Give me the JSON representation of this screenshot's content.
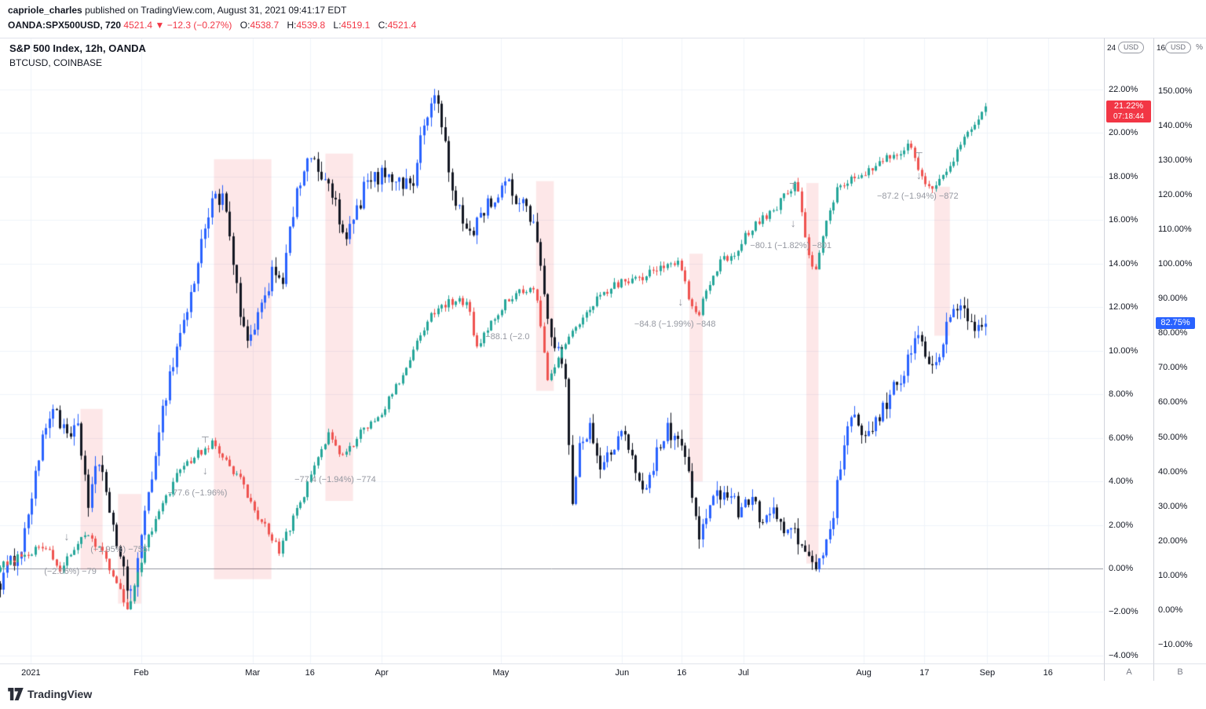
{
  "page": {
    "attribution": {
      "user": "capriole_charles",
      "rest": " published on TradingView.com, August 31, 2021 09:41:17 EDT"
    },
    "symbol_line": {
      "symbol": "OANDA:SPX500USD, 720",
      "last": "4521.4",
      "direction": "▼",
      "change": "−12.3 (−0.27%)",
      "open_label": "O:",
      "open_value": "4538.7",
      "high_label": "H:",
      "high_value": "4539.8",
      "low_label": "L:",
      "low_value": "4519.1",
      "close_label": "C:",
      "close_value": "4521.4"
    },
    "legend": {
      "line1": "S&P 500 Index, 12h, OANDA",
      "line2": "BTCUSD, COINBASE"
    },
    "scales": {
      "usd_button": "USD",
      "percent_label": "%",
      "inner_top_partial": "24",
      "outer_top_partial": "16",
      "a_button": "A",
      "b_button": "B",
      "spx_badge_value": "21.22%",
      "spx_badge_countdown": "07:18:44",
      "btc_badge_value": "82.75%"
    },
    "footer": {
      "brand": "TradingView"
    }
  },
  "chart_data": {
    "type": "candlestick",
    "description": "Percentage-change overlay of S&P 500 (12h, OANDA) and BTCUSD (COINBASE), Dec 2020 - Aug 2021",
    "bar_count": 280,
    "t_end": 0.893,
    "x_axis": {
      "labels": [
        {
          "label": "2021",
          "t": 0.028
        },
        {
          "label": "Feb",
          "t": 0.128
        },
        {
          "label": "Mar",
          "t": 0.229
        },
        {
          "label": "16",
          "t": 0.281
        },
        {
          "label": "Apr",
          "t": 0.346
        },
        {
          "label": "May",
          "t": 0.454
        },
        {
          "label": "Jun",
          "t": 0.564
        },
        {
          "label": "16",
          "t": 0.618
        },
        {
          "label": "Jul",
          "t": 0.674
        },
        {
          "label": "Aug",
          "t": 0.783
        },
        {
          "label": "17",
          "t": 0.838
        },
        {
          "label": "Sep",
          "t": 0.895
        },
        {
          "label": "16",
          "t": 0.95
        }
      ]
    },
    "inner_axis": {
      "unit": "%",
      "min": -4.4,
      "max": 24.34,
      "ticks": [
        22,
        20,
        18,
        16,
        14,
        12,
        10,
        8,
        6,
        4,
        2,
        0,
        -2,
        -4
      ]
    },
    "outer_axis": {
      "unit": "%",
      "min": -15.7,
      "max": 165.2,
      "ticks": [
        150,
        140,
        130,
        120,
        110,
        100,
        90,
        80,
        70,
        60,
        50,
        40,
        30,
        20,
        10,
        0,
        -10
      ]
    },
    "series": [
      {
        "name": "BTCUSD, COINBASE",
        "scale": "outer",
        "up_color": "#2962ff",
        "down_color": "#131722",
        "noise": 5,
        "wick": 3,
        "last_value": 82.75,
        "anchors": [
          [
            0,
            8
          ],
          [
            0.021,
            19.5
          ],
          [
            0.032,
            40
          ],
          [
            0.046,
            58
          ],
          [
            0.05,
            59
          ],
          [
            0.06,
            49
          ],
          [
            0.071,
            52
          ],
          [
            0.08,
            31
          ],
          [
            0.087,
            42
          ],
          [
            0.096,
            35
          ],
          [
            0.107,
            17
          ],
          [
            0.116,
            4.8
          ],
          [
            0.121,
            8
          ],
          [
            0.128,
            19.5
          ],
          [
            0.142,
            49
          ],
          [
            0.153,
            67
          ],
          [
            0.164,
            81
          ],
          [
            0.174,
            92
          ],
          [
            0.184,
            108
          ],
          [
            0.192,
            120
          ],
          [
            0.203,
            118
          ],
          [
            0.21,
            103
          ],
          [
            0.219,
            81
          ],
          [
            0.228,
            78
          ],
          [
            0.237,
            87
          ],
          [
            0.247,
            99
          ],
          [
            0.256,
            96
          ],
          [
            0.267,
            117
          ],
          [
            0.278,
            132
          ],
          [
            0.285,
            128
          ],
          [
            0.293,
            124
          ],
          [
            0.302,
            120
          ],
          [
            0.311,
            106
          ],
          [
            0.32,
            112
          ],
          [
            0.331,
            123
          ],
          [
            0.342,
            125
          ],
          [
            0.352,
            127
          ],
          [
            0.363,
            123
          ],
          [
            0.374,
            124
          ],
          [
            0.384,
            140
          ],
          [
            0.394,
            149
          ],
          [
            0.399,
            144
          ],
          [
            0.404,
            132
          ],
          [
            0.411,
            118
          ],
          [
            0.42,
            112
          ],
          [
            0.427,
            109
          ],
          [
            0.438,
            116
          ],
          [
            0.448,
            119
          ],
          [
            0.459,
            123
          ],
          [
            0.468,
            119
          ],
          [
            0.478,
            117
          ],
          [
            0.488,
            106
          ],
          [
            0.495,
            85
          ],
          [
            0.502,
            74
          ],
          [
            0.507,
            78
          ],
          [
            0.512,
            65
          ],
          [
            0.518,
            31
          ],
          [
            0.525,
            49
          ],
          [
            0.534,
            53
          ],
          [
            0.544,
            40
          ],
          [
            0.555,
            47
          ],
          [
            0.564,
            51
          ],
          [
            0.573,
            43
          ],
          [
            0.584,
            35
          ],
          [
            0.594,
            44
          ],
          [
            0.605,
            52
          ],
          [
            0.613,
            50
          ],
          [
            0.623,
            42
          ],
          [
            0.633,
            22
          ],
          [
            0.641,
            26
          ],
          [
            0.65,
            34
          ],
          [
            0.66,
            35
          ],
          [
            0.669,
            29
          ],
          [
            0.678,
            33
          ],
          [
            0.689,
            27
          ],
          [
            0.699,
            29
          ],
          [
            0.708,
            24
          ],
          [
            0.717,
            22
          ],
          [
            0.726,
            19.5
          ],
          [
            0.735,
            14
          ],
          [
            0.742,
            13
          ],
          [
            0.749,
            18
          ],
          [
            0.754,
            26
          ],
          [
            0.762,
            42
          ],
          [
            0.769,
            52
          ],
          [
            0.777,
            56
          ],
          [
            0.783,
            49
          ],
          [
            0.791,
            52
          ],
          [
            0.801,
            58
          ],
          [
            0.809,
            64
          ],
          [
            0.819,
            69
          ],
          [
            0.827,
            76
          ],
          [
            0.834,
            81
          ],
          [
            0.84,
            72
          ],
          [
            0.847,
            68
          ],
          [
            0.854,
            78
          ],
          [
            0.863,
            85
          ],
          [
            0.87,
            89
          ],
          [
            0.877,
            84
          ],
          [
            0.884,
            81
          ],
          [
            0.89,
            84
          ],
          [
            0.893,
            82.75
          ]
        ]
      },
      {
        "name": "S&P 500 Index, 12h, OANDA",
        "scale": "inner",
        "up_color": "#26a69a",
        "down_color": "#ef5350",
        "noise": 0.4,
        "wick": 0.2,
        "last_value": 21.22,
        "anchors": [
          [
            0,
            0.2
          ],
          [
            0.02,
            0.6
          ],
          [
            0.04,
            1
          ],
          [
            0.055,
            0
          ],
          [
            0.07,
            1.2
          ],
          [
            0.082,
            1.5
          ],
          [
            0.095,
            0.5
          ],
          [
            0.108,
            -0.8
          ],
          [
            0.116,
            -2
          ],
          [
            0.124,
            -0.5
          ],
          [
            0.135,
            1.5
          ],
          [
            0.15,
            3.2
          ],
          [
            0.163,
            4.5
          ],
          [
            0.178,
            5.2
          ],
          [
            0.192,
            5.8
          ],
          [
            0.205,
            5
          ],
          [
            0.218,
            4
          ],
          [
            0.232,
            2.5
          ],
          [
            0.245,
            1.5
          ],
          [
            0.253,
            0.8
          ],
          [
            0.262,
            1.8
          ],
          [
            0.272,
            3
          ],
          [
            0.285,
            4.8
          ],
          [
            0.298,
            6.2
          ],
          [
            0.309,
            5
          ],
          [
            0.32,
            5.8
          ],
          [
            0.333,
            6.6
          ],
          [
            0.346,
            7.2
          ],
          [
            0.36,
            8.5
          ],
          [
            0.375,
            10
          ],
          [
            0.391,
            11.7
          ],
          [
            0.413,
            12.4
          ],
          [
            0.424,
            12.2
          ],
          [
            0.431,
            9.9
          ],
          [
            0.441,
            10.9
          ],
          [
            0.454,
            12
          ],
          [
            0.47,
            12.7
          ],
          [
            0.484,
            12.9
          ],
          [
            0.492,
            10.5
          ],
          [
            0.495,
            8.4
          ],
          [
            0.502,
            9.1
          ],
          [
            0.509,
            10.2
          ],
          [
            0.52,
            10.9
          ],
          [
            0.534,
            12
          ],
          [
            0.548,
            12.7
          ],
          [
            0.562,
            13.1
          ],
          [
            0.584,
            13.4
          ],
          [
            0.605,
            14
          ],
          [
            0.616,
            14.2
          ],
          [
            0.626,
            12
          ],
          [
            0.633,
            11.7
          ],
          [
            0.644,
            13.1
          ],
          [
            0.655,
            14.2
          ],
          [
            0.669,
            14.5
          ],
          [
            0.676,
            15.3
          ],
          [
            0.69,
            16
          ],
          [
            0.705,
            16.7
          ],
          [
            0.715,
            17.4
          ],
          [
            0.722,
            17.6
          ],
          [
            0.733,
            14.2
          ],
          [
            0.74,
            13.8
          ],
          [
            0.747,
            15.6
          ],
          [
            0.758,
            17.3
          ],
          [
            0.769,
            17.8
          ],
          [
            0.783,
            18.2
          ],
          [
            0.797,
            18.7
          ],
          [
            0.811,
            19.1
          ],
          [
            0.826,
            19.4
          ],
          [
            0.836,
            17.8
          ],
          [
            0.843,
            17.3
          ],
          [
            0.85,
            17.6
          ],
          [
            0.861,
            18.5
          ],
          [
            0.872,
            19.6
          ],
          [
            0.883,
            20.5
          ],
          [
            0.893,
            21.22
          ]
        ]
      }
    ],
    "highlight_bands": [
      {
        "t0": 0.073,
        "t1": 0.093,
        "f0": 0.592,
        "f1": 0.849
      },
      {
        "t0": 0.107,
        "t1": 0.128,
        "f0": 0.728,
        "f1": 0.903
      },
      {
        "t0": 0.194,
        "t1": 0.246,
        "f0": 0.193,
        "f1": 0.864
      },
      {
        "t0": 0.295,
        "t1": 0.32,
        "f0": 0.184,
        "f1": 0.739
      },
      {
        "t0": 0.486,
        "t1": 0.502,
        "f0": 0.228,
        "f1": 0.563
      },
      {
        "t0": 0.625,
        "t1": 0.637,
        "f0": 0.344,
        "f1": 0.708
      },
      {
        "t0": 0.731,
        "t1": 0.742,
        "f0": 0.231,
        "f1": 0.839
      },
      {
        "t0": 0.847,
        "t1": 0.861,
        "f0": 0.237,
        "f1": 0.475
      }
    ],
    "annotations": [
      {
        "t": 0.795,
        "f": 0.252,
        "text": "−87.2 (−1.94%) −872"
      },
      {
        "t": 0.68,
        "f": 0.331,
        "text": "−80.1 (−1.82%) −801"
      },
      {
        "t": 0.575,
        "f": 0.457,
        "text": "−84.8 (−1.99%) −848"
      },
      {
        "t": 0.44,
        "f": 0.477,
        "text": "−88.1 (−2.0"
      },
      {
        "t": 0.152,
        "f": 0.726,
        "text": "−77.6 (−1.96%)"
      },
      {
        "t": 0.267,
        "f": 0.705,
        "text": "−77.4 (−1.94%) −774"
      },
      {
        "t": 0.04,
        "f": 0.852,
        "text": "(−2.06%) −79"
      },
      {
        "t": 0.082,
        "f": 0.817,
        "text": "(−1.95%) −755"
      }
    ],
    "arrows": [
      {
        "t": 0.0605,
        "f": 0.795
      },
      {
        "t": 0.186,
        "f": 0.69
      },
      {
        "t": 0.617,
        "f": 0.42
      },
      {
        "t": 0.719,
        "f": 0.295
      },
      {
        "t": 0.833,
        "f": 0.218
      }
    ],
    "t_bars": [
      {
        "t": 0.186,
        "f": 0.636
      },
      {
        "t": 0.719,
        "f": 0.231
      },
      {
        "t": 0.833,
        "f": 0.182
      }
    ],
    "colors": {
      "band": "rgba(242,54,69,0.12)",
      "grid": "#f0f3fa",
      "zero_line": "#9598a1",
      "annotation": "#9598a1",
      "badge_red": "#f23645",
      "badge_blue": "#2962ff"
    }
  }
}
